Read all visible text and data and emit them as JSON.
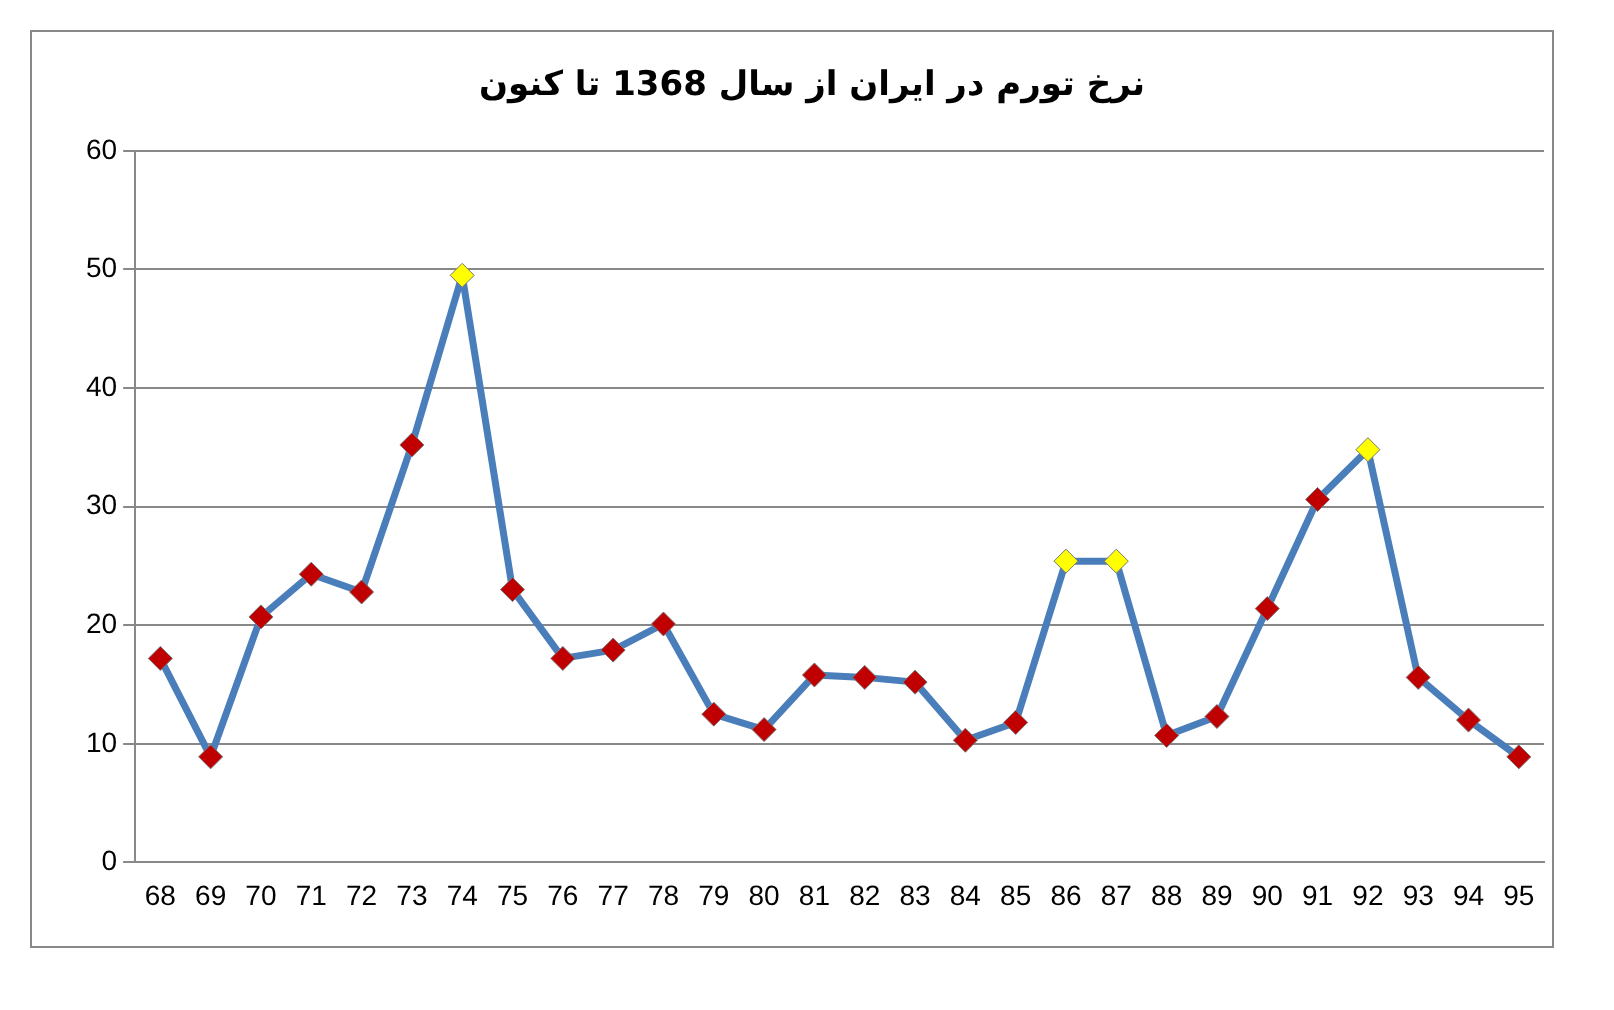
{
  "chart_data": {
    "type": "line",
    "title": "نرخ تورم در ایران از سال 1368 تا کنون",
    "categories": [
      "68",
      "69",
      "70",
      "71",
      "72",
      "73",
      "74",
      "75",
      "76",
      "77",
      "78",
      "79",
      "80",
      "81",
      "82",
      "83",
      "84",
      "85",
      "86",
      "87",
      "88",
      "89",
      "90",
      "91",
      "92",
      "93",
      "94",
      "95"
    ],
    "series": [
      {
        "color": "#4a7ebb",
        "colors": [
          "#c00000",
          "#c00000",
          "#c00000",
          "#c00000",
          "#c00000",
          "#c00000",
          "#ffff00",
          "#c00000",
          "#c00000",
          "#c00000",
          "#c00000",
          "#c00000",
          "#c00000",
          "#c00000",
          "#c00000",
          "#c00000",
          "#c00000",
          "#c00000",
          "#ffff00",
          "#ffff00",
          "#c00000",
          "#c00000",
          "#c00000",
          "#c00000",
          "#ffff00",
          "#c00000",
          "#c00000",
          "#c00000"
        ],
        "values": [
          17.2,
          8.9,
          20.7,
          24.3,
          22.8,
          35.2,
          49.5,
          23.0,
          17.2,
          17.9,
          20.1,
          12.5,
          11.2,
          15.8,
          15.6,
          15.2,
          10.3,
          11.8,
          25.4,
          25.4,
          10.7,
          12.3,
          21.4,
          30.6,
          34.8,
          15.6,
          12.0,
          8.9
        ]
      }
    ],
    "ylim": [
      0,
      60
    ],
    "yticks": [
      0,
      10,
      20,
      30,
      40,
      50,
      60
    ],
    "grid": "y",
    "legend": false,
    "marker": "diamond",
    "line_style": "solid"
  }
}
